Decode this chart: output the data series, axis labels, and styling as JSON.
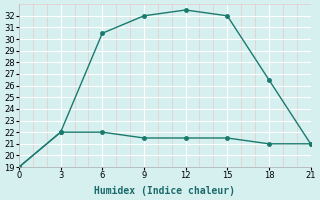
{
  "line1_x": [
    0,
    3,
    6,
    9,
    12,
    15,
    18,
    21
  ],
  "line1_y": [
    19,
    22,
    30.5,
    32,
    32.5,
    32,
    26.5,
    21
  ],
  "line2_x": [
    0,
    3,
    6,
    9,
    12,
    15,
    18,
    21
  ],
  "line2_y": [
    19,
    22,
    22,
    21.5,
    21.5,
    21.5,
    21,
    21
  ],
  "line_color": "#1a7a6e",
  "bg_color": "#d6f0f0",
  "plot_bg_color": "#d6f0f0",
  "major_grid_color": "#ffffff",
  "minor_grid_color": "#e8c8c8",
  "xlabel": "Humidex (Indice chaleur)",
  "xlim": [
    0,
    21
  ],
  "ylim": [
    19,
    33
  ],
  "xticks": [
    0,
    3,
    6,
    9,
    12,
    15,
    18,
    21
  ],
  "yticks": [
    19,
    20,
    21,
    22,
    23,
    24,
    25,
    26,
    27,
    28,
    29,
    30,
    31,
    32
  ],
  "label_fontsize": 7.0,
  "tick_fontsize": 6.0,
  "line_width": 1.0,
  "marker_size": 2.5
}
